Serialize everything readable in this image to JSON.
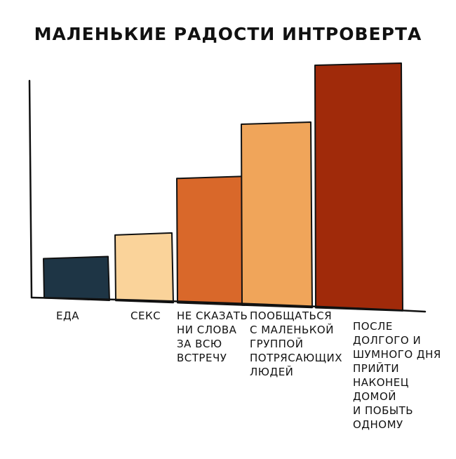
{
  "chart_data": {
    "type": "bar",
    "title": "МАЛЕНЬКИЕ РАДОСТИ ИНТРОВЕРТА",
    "xlabel": "",
    "ylabel": "",
    "categories": [
      "ЕДА",
      "СЕКС",
      "НЕ СКАЗАТЬ НИ СЛОВА ЗА ВСЮ ВСТРЕЧУ",
      "ПООБЩАТЬСЯ С МАЛЕНЬКОЙ ГРУППОЙ ПОТРЯСАЮЩИХ ЛЮДЕЙ",
      "ПОСЛЕ ДОЛГОГО И ШУМНОГО ДНЯ ПРИЙТИ НАКОНЕЦ ДОМОЙ И ПОБЫТЬ ОДНОМУ"
    ],
    "category_lines": [
      [
        "ЕДА"
      ],
      [
        "СЕКС"
      ],
      [
        "НЕ СКАЗАТЬ",
        "НИ СЛОВА",
        "ЗА ВСЮ",
        "ВСТРЕЧУ"
      ],
      [
        "ПООБЩАТЬСЯ",
        "С МАЛЕНЬКОЙ",
        "ГРУППОЙ",
        "ПОТРЯСАЮЩИХ",
        "ЛЮДЕЙ"
      ],
      [
        "ПОСЛЕ",
        "ДОЛГОГО И",
        "ШУМНОГО ДНЯ",
        "ПРИЙТИ",
        "НАКОНЕЦ",
        "ДОМОЙ",
        "И ПОБЫТЬ",
        "ОДНОМУ"
      ]
    ],
    "values": [
      18,
      28,
      52,
      75,
      100
    ],
    "ylim": [
      0,
      100
    ],
    "colors": [
      "#1e3545",
      "#fad39a",
      "#d9682a",
      "#f0a55a",
      "#a02a0a"
    ],
    "axis_ticks": false,
    "grid": false,
    "legend": "none"
  }
}
